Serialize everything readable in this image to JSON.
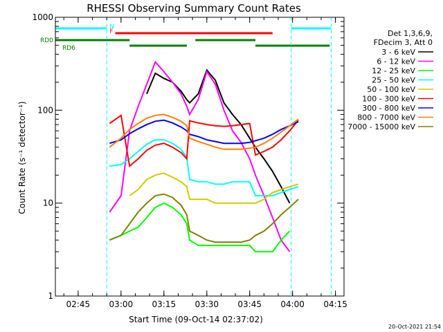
{
  "chart_data": {
    "type": "line",
    "title": "RHESSI Observing Summary Count Rates",
    "xlabel": "Start Time (09-Oct-14 02:37:02)",
    "ylabel": "Count Rate (s⁻¹ detector⁻¹)",
    "y_scale": "log",
    "ylim": [
      1,
      1000
    ],
    "xlim": [
      "02:37:02",
      "04:18:00"
    ],
    "x_ticks": [
      "02:45",
      "03:00",
      "03:15",
      "03:30",
      "03:45",
      "04:00",
      "04:15"
    ],
    "y_ticks": [
      "1",
      "10",
      "100",
      "1000"
    ],
    "legend_header": [
      "Det 1,3,6,9,",
      "FDecim 3, Att 0"
    ],
    "legend_position": "right",
    "footer_date": "20-Oct-2021 21:54",
    "flags": [
      {
        "label": "N",
        "color": "#00ffff",
        "intervals": [
          [
            "02:37:02",
            "02:55:00"
          ],
          [
            "03:59:30",
            "04:13:30"
          ]
        ]
      },
      {
        "label": "F",
        "color": "#ff0000",
        "intervals": [
          [
            "02:58:00",
            "03:53:00"
          ]
        ]
      },
      {
        "label": "RD0",
        "color": "#008000",
        "intervals": [
          [
            "02:37:02",
            "03:03:00"
          ],
          [
            "03:26:00",
            "03:47:00"
          ]
        ]
      },
      {
        "label": "RD6",
        "color": "#008000",
        "intervals": [
          [
            "03:03:00",
            "03:23:00"
          ],
          [
            "03:47:00",
            "04:13:00"
          ]
        ]
      }
    ],
    "x_samples": [
      "02:56",
      "03:00",
      "03:03",
      "03:06",
      "03:09",
      "03:12",
      "03:15",
      "03:18",
      "03:21",
      "03:23",
      "03:24",
      "03:27",
      "03:30",
      "03:33",
      "03:36",
      "03:39",
      "03:42",
      "03:45",
      "03:47",
      "03:50",
      "03:53",
      "03:56",
      "03:59",
      "04:02"
    ],
    "series": [
      {
        "name": "3 - 6 keV",
        "color": "#000000",
        "values": [
          null,
          null,
          null,
          null,
          150,
          250,
          220,
          200,
          160,
          130,
          120,
          150,
          270,
          210,
          120,
          90,
          70,
          50,
          40,
          30,
          22,
          15,
          10,
          null
        ]
      },
      {
        "name": "6 - 12 keV",
        "color": "#ff00ff",
        "values": [
          8,
          12,
          60,
          110,
          190,
          330,
          260,
          200,
          150,
          110,
          90,
          130,
          260,
          190,
          100,
          60,
          45,
          30,
          20,
          12,
          7,
          4,
          3,
          null
        ]
      },
      {
        "name": "12 - 25 keV",
        "color": "#00ff00",
        "values": [
          4,
          4.5,
          5,
          5.5,
          7,
          9,
          10,
          9,
          7.5,
          6,
          4,
          3.5,
          3.5,
          3.5,
          3.5,
          3.5,
          3.5,
          3.5,
          3,
          3,
          3,
          4,
          5,
          null
        ]
      },
      {
        "name": "25 - 50 keV",
        "color": "#00ffff",
        "values": [
          25,
          26,
          30,
          36,
          43,
          48,
          48,
          44,
          38,
          31,
          18,
          17,
          17,
          16,
          16,
          17,
          17,
          17,
          12,
          12,
          12,
          13,
          14,
          15
        ]
      },
      {
        "name": "50 - 100 keV",
        "color": "#cccc00",
        "values": [
          null,
          null,
          12,
          14,
          18,
          20,
          21,
          19,
          17,
          15,
          11,
          11,
          11,
          10,
          10,
          10,
          10,
          10,
          10,
          11,
          13,
          14,
          15,
          16
        ]
      },
      {
        "name": "100 - 300 keV",
        "color": "#ff0000",
        "values": [
          72,
          88,
          25,
          30,
          37,
          42,
          44,
          40,
          35,
          30,
          77,
          73,
          70,
          68,
          67,
          68,
          70,
          72,
          33,
          36,
          40,
          48,
          60,
          78
        ]
      },
      {
        "name": "300 - 800 keV",
        "color": "#0000ff",
        "values": [
          44,
          48,
          56,
          63,
          70,
          76,
          78,
          73,
          66,
          60,
          55,
          52,
          48,
          46,
          44,
          44,
          44,
          45,
          47,
          50,
          55,
          62,
          68,
          75
        ]
      },
      {
        "name": "800 - 7000 keV",
        "color": "#ff8000",
        "values": [
          40,
          50,
          62,
          72,
          82,
          88,
          90,
          84,
          76,
          68,
          50,
          46,
          43,
          40,
          38,
          38,
          38,
          39,
          40,
          44,
          50,
          58,
          68,
          80
        ]
      },
      {
        "name": "7000 - 15000 keV",
        "color": "#808000",
        "values": [
          4,
          4.5,
          6,
          8,
          10,
          12,
          12.5,
          11.5,
          9.5,
          7.5,
          5,
          4.5,
          4,
          3.8,
          3.8,
          3.8,
          3.8,
          4,
          4.5,
          5,
          6,
          7.5,
          9,
          11
        ]
      }
    ]
  }
}
